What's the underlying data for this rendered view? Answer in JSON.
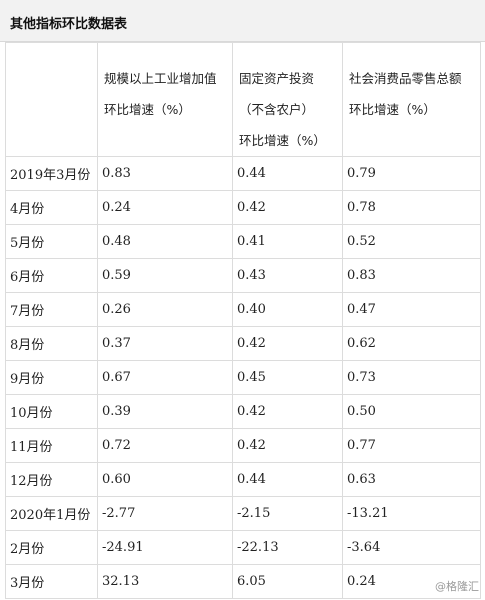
{
  "title": "其他指标环比数据表",
  "columns": [
    {
      "lines": []
    },
    {
      "lines": [
        "规模以上工业增加值",
        "环比增速（%）"
      ]
    },
    {
      "lines": [
        "固定资产投资",
        "（不含农户）",
        "环比增速（%）"
      ]
    },
    {
      "lines": [
        "社会消费品零售总额",
        "环比增速（%）"
      ]
    }
  ],
  "rows": [
    {
      "label": "2019年3月份",
      "values": [
        "0.83",
        "0.44",
        "0.79"
      ]
    },
    {
      "label": "4月份",
      "values": [
        "0.24",
        "0.42",
        "0.78"
      ]
    },
    {
      "label": "5月份",
      "values": [
        "0.48",
        "0.41",
        "0.52"
      ]
    },
    {
      "label": "6月份",
      "values": [
        "0.59",
        "0.43",
        "0.83"
      ]
    },
    {
      "label": "7月份",
      "values": [
        "0.26",
        "0.40",
        "0.47"
      ]
    },
    {
      "label": "8月份",
      "values": [
        "0.37",
        "0.42",
        "0.62"
      ]
    },
    {
      "label": "9月份",
      "values": [
        "0.67",
        "0.45",
        "0.73"
      ]
    },
    {
      "label": "10月份",
      "values": [
        "0.39",
        "0.42",
        "0.50"
      ]
    },
    {
      "label": "11月份",
      "values": [
        "0.72",
        "0.42",
        "0.77"
      ]
    },
    {
      "label": "12月份",
      "values": [
        "0.60",
        "0.44",
        "0.63"
      ]
    },
    {
      "label": "2020年1月份",
      "values": [
        "-2.77",
        "-2.15",
        "-13.21"
      ]
    },
    {
      "label": "2月份",
      "values": [
        "-24.91",
        "-22.13",
        "-3.64"
      ]
    },
    {
      "label": "3月份",
      "values": [
        "32.13",
        "6.05",
        "0.24"
      ]
    }
  ],
  "watermark": "@格隆汇"
}
